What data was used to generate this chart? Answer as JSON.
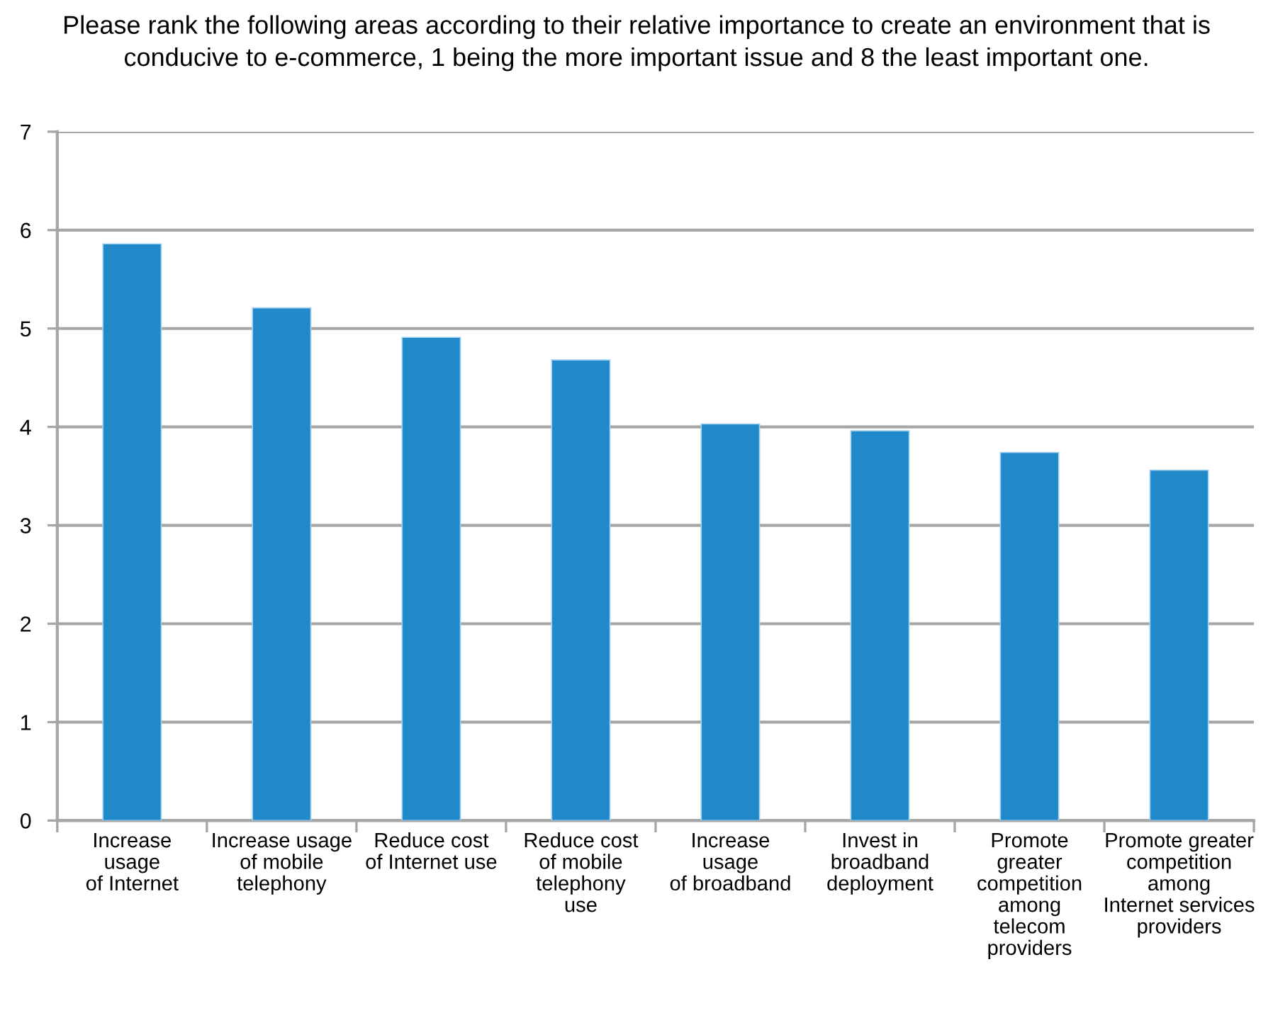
{
  "chart_data": {
    "type": "bar",
    "title": "Please rank the following areas according to their relative importance to create an environment that is\nconducive to e-commerce, 1 being the more important issue and 8 the least important one.",
    "categories": [
      "Increase\nusage\nof Internet",
      "Increase usage\nof mobile\ntelephony",
      "Reduce cost\nof Internet use",
      "Reduce cost\nof mobile\ntelephony\nuse",
      "Increase\nusage\nof broadband",
      "Invest in\nbroadband\ndeployment",
      "Promote\ngreater\ncompetition\namong\ntelecom\nproviders",
      "Promote greater\ncompetition\namong\nInternet services\nproviders"
    ],
    "values": [
      5.86,
      5.21,
      4.91,
      4.68,
      4.03,
      3.96,
      3.74,
      3.56
    ],
    "color": "#2089c9",
    "ylim": [
      0,
      7
    ],
    "yticks": [
      0,
      1,
      2,
      3,
      4,
      5,
      6,
      7
    ],
    "grid": "y"
  }
}
